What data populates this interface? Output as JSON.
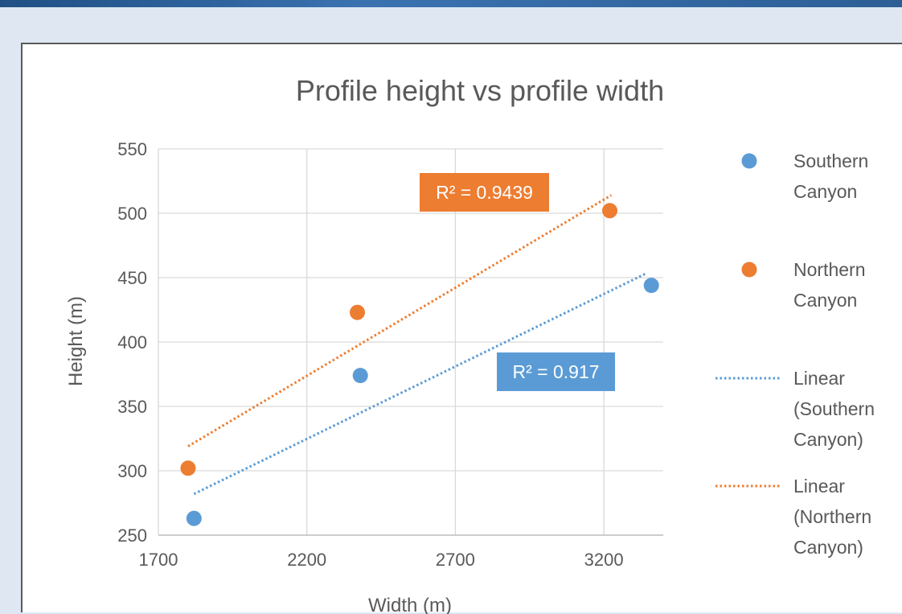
{
  "chart_data": {
    "type": "scatter",
    "title": "Profile height vs profile width",
    "xlabel": "Width (m)",
    "ylabel": "Height (m)",
    "xlim": [
      1700,
      3400
    ],
    "ylim": [
      250,
      550
    ],
    "x_ticks": [
      1700,
      2200,
      2700,
      3200
    ],
    "y_ticks": [
      250,
      300,
      350,
      400,
      450,
      500,
      550
    ],
    "grid": true,
    "legend_position": "right",
    "series": [
      {
        "name": "Southern Canyon",
        "color": "#5b9bd5",
        "points": [
          [
            1820,
            263
          ],
          [
            2380,
            374
          ],
          [
            3360,
            444
          ]
        ]
      },
      {
        "name": "Northern Canyon",
        "color": "#ed7d31",
        "points": [
          [
            1800,
            302
          ],
          [
            2370,
            423
          ],
          [
            3220,
            502
          ]
        ]
      }
    ],
    "trendlines": [
      {
        "name": "Linear (Southern Canyon)",
        "color": "#5b9bd5",
        "from": [
          1820,
          282
        ],
        "to": [
          3340,
          453
        ],
        "r2_label": "R² = 0.917"
      },
      {
        "name": "Linear (Northern Canyon)",
        "color": "#ed7d31",
        "from": [
          1800,
          319
        ],
        "to": [
          3225,
          514
        ],
        "r2_label": "R² = 0.9439"
      }
    ],
    "legend": [
      {
        "lines": [
          "Southern",
          "Canyon"
        ],
        "symbol": "marker",
        "color": "#5b9bd5"
      },
      {
        "lines": [
          "Northern",
          "Canyon"
        ],
        "symbol": "marker",
        "color": "#ed7d31"
      },
      {
        "lines": [
          "Linear",
          "(Southern",
          "Canyon)"
        ],
        "symbol": "dotted-line",
        "color": "#5b9bd5"
      },
      {
        "lines": [
          "Linear",
          "(Northern",
          "Canyon)"
        ],
        "symbol": "dotted-line",
        "color": "#ed7d31"
      }
    ]
  }
}
